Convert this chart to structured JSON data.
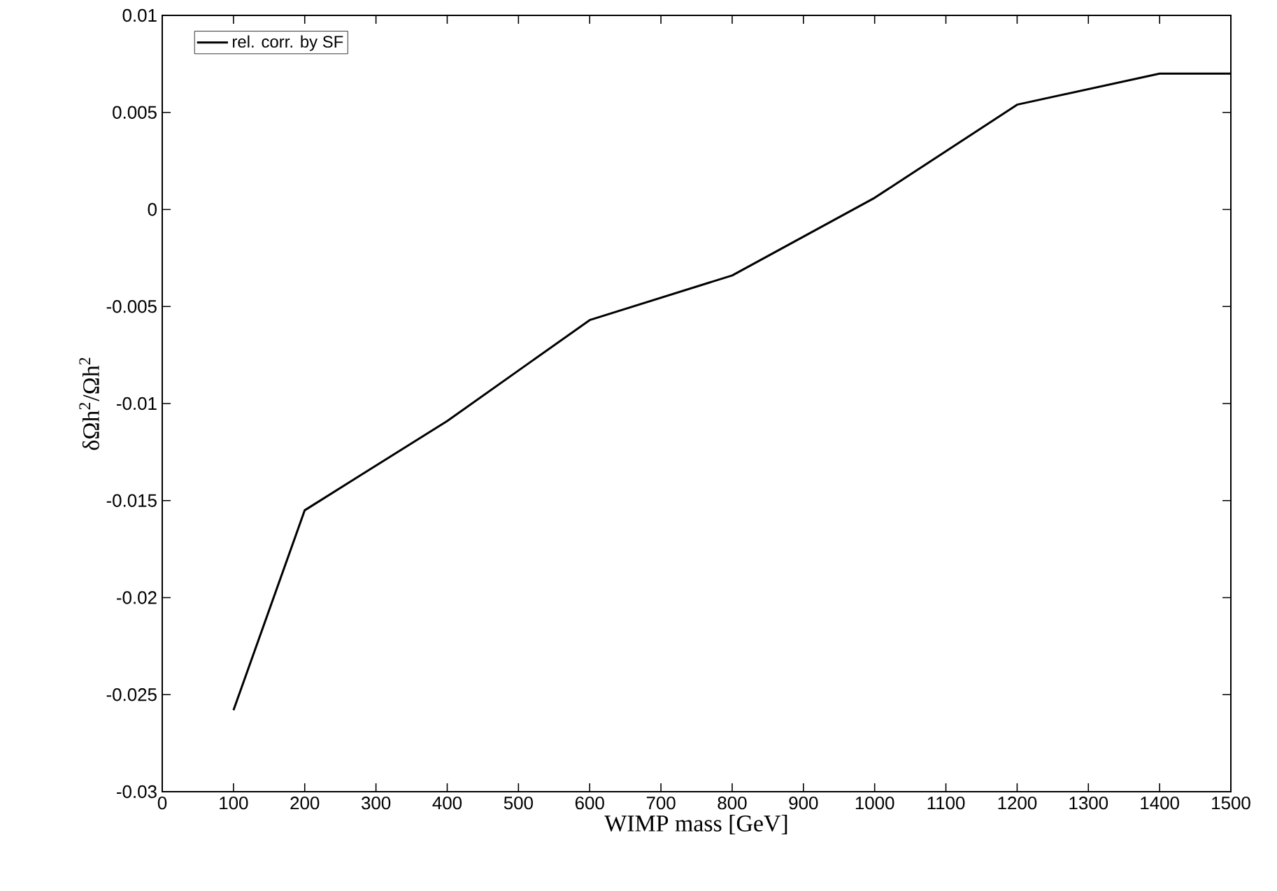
{
  "chart_data": {
    "type": "line",
    "xlabel": "WIMP mass [GeV]",
    "ylabel": "δΩh$^{2}$/Ωh$^{2}$",
    "x": [
      100,
      200,
      400,
      600,
      800,
      1000,
      1200,
      1400,
      1500
    ],
    "series": [
      {
        "name": "rel. corr. by SF",
        "color": "#000000",
        "values": [
          -0.0258,
          -0.0155,
          -0.0109,
          -0.0057,
          -0.0034,
          0.0006,
          0.0054,
          0.007,
          0.007
        ]
      }
    ],
    "xlim": [
      0,
      1500
    ],
    "ylim": [
      -0.03,
      0.01
    ],
    "xticks": [
      0,
      100,
      200,
      300,
      400,
      500,
      600,
      700,
      800,
      900,
      1000,
      1100,
      1200,
      1300,
      1400,
      1500
    ],
    "yticks": [
      {
        "value": -0.03,
        "label": "-0.03"
      },
      {
        "value": -0.025,
        "label": "-0.025"
      },
      {
        "value": -0.02,
        "label": "-0.02"
      },
      {
        "value": -0.015,
        "label": "-0.015"
      },
      {
        "value": -0.01,
        "label": "-0.01"
      },
      {
        "value": -0.005,
        "label": "-0.005"
      },
      {
        "value": 0,
        "label": "0"
      },
      {
        "value": 0.005,
        "label": "0.005"
      },
      {
        "value": 0.01,
        "label": "0.01"
      }
    ],
    "grid": false,
    "legend": "top left",
    "marker": "none",
    "line_style": "solid"
  }
}
